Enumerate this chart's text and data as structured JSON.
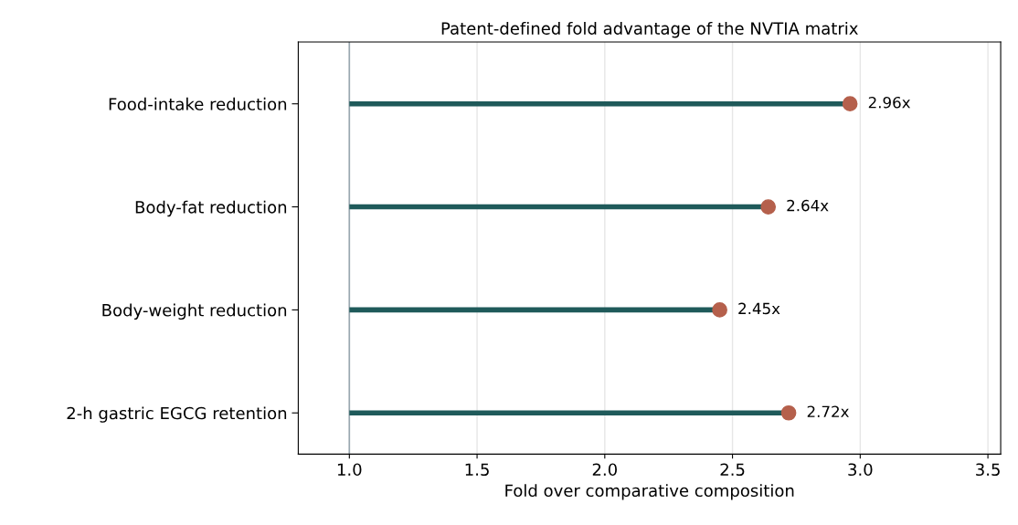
{
  "chart_data": {
    "type": "lollipop",
    "orientation": "horizontal",
    "title": "Patent-defined fold advantage of the NVTIA matrix",
    "xlabel": "Fold over comparative composition",
    "categories": [
      "Food-intake reduction",
      "Body-fat reduction",
      "Body-weight reduction",
      "2-h gastric EGCG retention"
    ],
    "series": [
      {
        "color": "#b5604c",
        "values": [
          2.96,
          2.64,
          2.45,
          2.72
        ],
        "value_labels": [
          "2.96x",
          "2.64x",
          "2.45x",
          "2.72x"
        ]
      }
    ],
    "xlim": [
      0.8,
      3.55
    ],
    "xticks": [
      {
        "value": 1.0,
        "label": "1.0"
      },
      1.5,
      {
        "value": 2.0,
        "label": "2.0"
      },
      2.5,
      {
        "value": 3.0,
        "label": "3.0"
      },
      3.5
    ],
    "ref_lines": [
      {
        "axis": "x",
        "value": 1.0,
        "color": "#9aa8b0"
      }
    ],
    "grid": "x",
    "marker": "circle",
    "legend": false
  }
}
